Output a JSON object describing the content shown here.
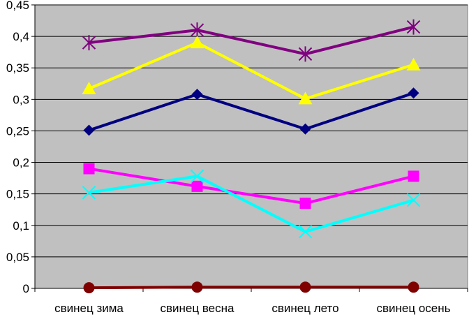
{
  "chart_data": {
    "type": "line",
    "title": "",
    "xlabel": "",
    "ylabel": "",
    "categories": [
      "свинец зима",
      "свинец весна",
      "свинец лето",
      "свинец осень"
    ],
    "ylim": [
      0,
      0.45
    ],
    "yticks": [
      0,
      0.05,
      0.1,
      0.15,
      0.2,
      0.25,
      0.3,
      0.35,
      0.4,
      0.45
    ],
    "ytick_labels": [
      "0",
      "0,05",
      "0,1",
      "0,15",
      "0,2",
      "0,25",
      "0,3",
      "0,35",
      "0,4",
      "0,45"
    ],
    "grid": "horizontal",
    "plot_background": "#c0c0c0",
    "series": [
      {
        "name": "series-purple-star",
        "color": "#800080",
        "marker": "star",
        "values": [
          0.39,
          0.41,
          0.372,
          0.415
        ]
      },
      {
        "name": "series-yellow-triangle",
        "color": "#ffff00",
        "marker": "triangle",
        "values": [
          0.317,
          0.39,
          0.301,
          0.355
        ]
      },
      {
        "name": "series-navy-diamond",
        "color": "#000080",
        "marker": "diamond",
        "values": [
          0.251,
          0.308,
          0.253,
          0.31
        ]
      },
      {
        "name": "series-magenta-square",
        "color": "#ff00ff",
        "marker": "square",
        "values": [
          0.19,
          0.162,
          0.135,
          0.178
        ]
      },
      {
        "name": "series-cyan-x",
        "color": "#00ffff",
        "marker": "x",
        "values": [
          0.152,
          0.178,
          0.09,
          0.14
        ]
      },
      {
        "name": "series-maroon-circle",
        "color": "#800000",
        "marker": "circle",
        "values": [
          0.001,
          0.002,
          0.002,
          0.002
        ]
      }
    ]
  }
}
